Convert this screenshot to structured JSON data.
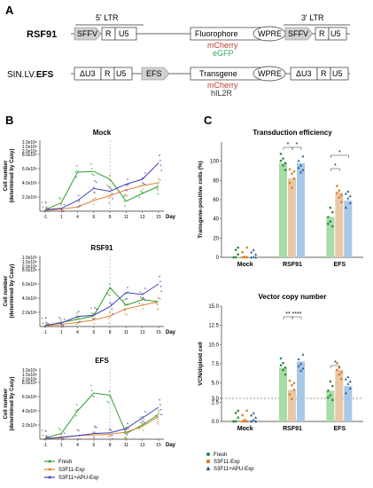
{
  "panel_a": {
    "letter": "A",
    "construct1": {
      "name": "RSF91",
      "ltr5_label": "5' LTR",
      "ltr3_label": "3' LTR",
      "boxes": [
        "SFFV",
        "R",
        "U5",
        "Fluorophore",
        "WPRE",
        "SFFV",
        "R",
        "U5"
      ],
      "sublabels": [
        {
          "text": "mCherry",
          "color": "#c0392b"
        },
        {
          "text": "eGFP",
          "color": "#27ae60"
        }
      ]
    },
    "construct2": {
      "name": "SIN.LV.EFS",
      "boxes": [
        "ΔU3",
        "R",
        "U5",
        "EFS",
        "Transgene",
        "WPRE",
        "ΔU3",
        "R",
        "U5"
      ],
      "sublabels": [
        {
          "text": "mCherry",
          "color": "#c0392b"
        },
        {
          "text": "hIL2R",
          "color": "#333333"
        }
      ]
    }
  },
  "panel_b": {
    "letter": "B",
    "ylabel": "Cell number\n(determined by Casy)",
    "xlabel": "Day",
    "x_ticks": [
      "-1",
      "1",
      "4",
      "6",
      "8",
      "11",
      "13",
      "15"
    ],
    "y_ticks": [
      "2.0x10⁵",
      "4.0x10⁵",
      "6.0x10⁵",
      "8.0x10⁵",
      "1.0x10⁶",
      "1.5x10⁶",
      "2.0x10⁶"
    ],
    "subplots": [
      {
        "title": "Mock",
        "series": [
          {
            "name": "Fresh",
            "color": "#2ca02c",
            "values": [
              0.2,
              1.2,
              5.5,
              5.6,
              4.5,
              1.4,
              2.5,
              3.5
            ]
          },
          {
            "name": "S3F11-Exp",
            "color": "#e08030",
            "values": [
              0.1,
              0.3,
              0.6,
              1.5,
              2.2,
              3.0,
              3.6,
              4.0
            ]
          },
          {
            "name": "S3F11+APU-Exp",
            "color": "#4040c0",
            "values": [
              0.2,
              0.4,
              1.5,
              3.2,
              2.8,
              3.8,
              4.5,
              6.8
            ]
          }
        ]
      },
      {
        "title": "RSF91",
        "series": [
          {
            "name": "Fresh",
            "color": "#2ca02c",
            "values": [
              0.1,
              0.6,
              1.0,
              1.5,
              5.5,
              3.0,
              3.8,
              3.5
            ]
          },
          {
            "name": "S3F11-Exp",
            "color": "#e08030",
            "values": [
              0.1,
              0.3,
              0.6,
              0.9,
              1.5,
              2.5,
              3.0,
              3.5
            ]
          },
          {
            "name": "S3F11+APU-Exp",
            "color": "#4040c0",
            "values": [
              0.2,
              0.5,
              1.4,
              1.6,
              2.8,
              4.8,
              4.5,
              6.0
            ]
          }
        ]
      },
      {
        "title": "EFS",
        "series": [
          {
            "name": "Fresh",
            "color": "#2ca02c",
            "values": [
              0.2,
              0.8,
              4.0,
              6.5,
              6.2,
              0.8,
              2.0,
              3.5
            ]
          },
          {
            "name": "S3F11-Exp",
            "color": "#e08030",
            "values": [
              0.1,
              0.2,
              0.5,
              0.6,
              0.7,
              1.0,
              1.8,
              3.2
            ]
          },
          {
            "name": "S3F11+APU-Exp",
            "color": "#4040c0",
            "values": [
              0.1,
              0.3,
              0.5,
              0.8,
              0.9,
              1.5,
              3.0,
              4.5
            ]
          }
        ]
      }
    ],
    "legend": [
      {
        "name": "Fresh",
        "color": "#2ca02c"
      },
      {
        "name": "S3F11-Exp",
        "color": "#e08030"
      },
      {
        "name": "S3F11+APU-Exp",
        "color": "#4040c0"
      }
    ]
  },
  "panel_c": {
    "letter": "C",
    "groups": [
      "Mock",
      "RSF91",
      "EFS"
    ],
    "legend": [
      {
        "name": "Fresh",
        "color": "#2e8b3e",
        "shape": "circle"
      },
      {
        "name": "S3F11-Exp",
        "color": "#d9822b",
        "shape": "square"
      },
      {
        "name": "S3F11+APU-Exp",
        "color": "#1f5a8a",
        "shape": "triangle"
      }
    ],
    "chart1": {
      "title": "Transduction efficiency",
      "ylabel": "Transgene-positive cells (%)",
      "y_ticks": [
        "0",
        "20",
        "40",
        "60",
        "80",
        "100"
      ],
      "ylim": [
        0,
        120
      ],
      "bar_colors": [
        "#a8dca8",
        "#e8c8a8",
        "#a8c8e8"
      ],
      "values": [
        [
          0.5,
          0.5,
          0.5
        ],
        [
          98,
          82,
          98
        ],
        [
          42,
          67,
          59
        ]
      ],
      "sig_labels": [
        "*",
        "*",
        "*",
        "*"
      ]
    },
    "chart2": {
      "title": "Vector copy number",
      "ylabel": "VCN/diploid cell",
      "y_ticks": [
        "0.0",
        "2.5",
        "3.0",
        "5.0",
        "7.5",
        "10.0",
        "12.5",
        "15.0"
      ],
      "ylim": [
        0,
        15
      ],
      "dashed_y": 3.0,
      "bar_colors": [
        "#a8dca8",
        "#e8c8a8",
        "#a8c8e8"
      ],
      "values": [
        [
          0.2,
          0.2,
          0.2
        ],
        [
          7.0,
          4.1,
          7.8
        ],
        [
          4.0,
          6.7,
          4.6
        ]
      ],
      "sig_labels": [
        "**",
        "****",
        "*"
      ]
    }
  }
}
